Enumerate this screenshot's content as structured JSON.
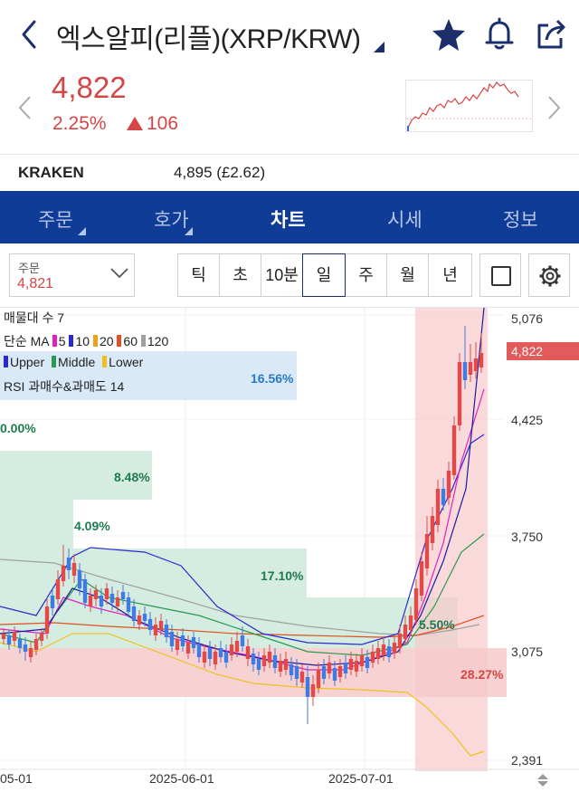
{
  "header": {
    "title": "엑스알피(리플)(XRP/KRW)"
  },
  "quote": {
    "price": "4,822",
    "change_rate": "2.25%",
    "change_amount": "106"
  },
  "exchange": {
    "name": "KRAKEN",
    "value": "4,895 (£2.62)"
  },
  "tabs": [
    {
      "label": "주문",
      "active": false
    },
    {
      "label": "호가",
      "active": false
    },
    {
      "label": "차트",
      "active": true
    },
    {
      "label": "시세",
      "active": false
    },
    {
      "label": "정보",
      "active": false
    }
  ],
  "toolbar": {
    "order_label": "주문",
    "order_value": "4,821",
    "periods": [
      "틱",
      "초",
      "10분",
      "일",
      "주",
      "월",
      "년"
    ],
    "selected_period": "일"
  },
  "chart": {
    "indicators": {
      "volume_profile": "매물대 수 7",
      "ma_label": "단순 MA",
      "ma_periods": [
        "5",
        "10",
        "20",
        "60",
        "120"
      ],
      "ma_colors": [
        "#e020c0",
        "#2a2ad0",
        "#f0a020",
        "#e05020",
        "#a0a0a0"
      ],
      "bollinger": [
        "Upper",
        "Middle",
        "Lower"
      ],
      "bollinger_colors": [
        "#2a2ad0",
        "#2a9a50",
        "#f0c020"
      ],
      "rsi": "RSI 과매수&과매도 14"
    },
    "volume_profile_pcts": [
      "16.56%",
      "0.00%",
      "8.48%",
      "4.09%",
      "17.10%",
      "5.50%",
      "28.27%"
    ],
    "price_axis": [
      "5,076",
      "4,425",
      "3,750",
      "3,075",
      "2,391"
    ],
    "current_price_tag": "4,822",
    "date_axis": [
      "05-01",
      "2025-06-01",
      "2025-07-01"
    ]
  }
}
